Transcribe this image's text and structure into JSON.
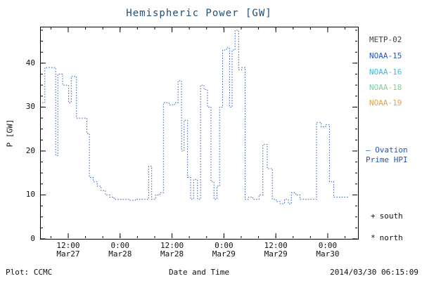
{
  "title": {
    "text": "Hemispheric Power [GW]",
    "color": "#1f4e79"
  },
  "y_axis_label": "P [GW]",
  "x_axis_label": "Date and Time",
  "footer": {
    "plot_credit": "Plot: CCMC",
    "timestamp": "2014/03/30 06:15:09"
  },
  "legend": {
    "satellites": [
      {
        "label": "METP-02",
        "color": "#3f3f3f"
      },
      {
        "label": "NOAA-15",
        "color": "#2457b8"
      },
      {
        "label": "NOAA-16",
        "color": "#3fbcd4"
      },
      {
        "label": "NOAA-18",
        "color": "#7ecf9a"
      },
      {
        "label": "NOAA-19",
        "color": "#e2a14f"
      }
    ],
    "ovation_note": {
      "line1": "— Ovation",
      "line2": "Prime HPI",
      "color": "#2457b8"
    },
    "hemisphere_markers": [
      {
        "symbol": "+",
        "label": "south"
      },
      {
        "symbol": "*",
        "label": "north"
      }
    ]
  },
  "chart_data": {
    "type": "line",
    "step": true,
    "line_style": "dotted",
    "title": "Hemispheric Power [GW]",
    "xlabel": "Date and Time",
    "ylabel": "P [GW]",
    "x_unit": "hours since 2014-03-27 00:00 UT",
    "xlim": [
      5.5,
      79
    ],
    "ylim": [
      0,
      48.3
    ],
    "y_ticks": [
      0,
      10,
      20,
      30,
      40
    ],
    "y_minor_step": 2.5,
    "x_minor_step_hours": 4,
    "x_ticks": [
      {
        "hours": 12,
        "time": "12:00",
        "date": "Mar27"
      },
      {
        "hours": 24,
        "time": "0:00",
        "date": "Mar28"
      },
      {
        "hours": 36,
        "time": "12:00",
        "date": "Mar28"
      },
      {
        "hours": 48,
        "time": "0:00",
        "date": "Mar29"
      },
      {
        "hours": 60,
        "time": "12:00",
        "date": "Mar29"
      },
      {
        "hours": 72,
        "time": "0:00",
        "date": "Mar30"
      }
    ],
    "line_color": "#2457b8",
    "legend_position": "right",
    "grid": false,
    "series": [
      {
        "name": "Ovation Prime HPI",
        "points": [
          [
            6.0,
            31
          ],
          [
            6.6,
            39
          ],
          [
            9.1,
            19
          ],
          [
            9.6,
            37.5
          ],
          [
            10.7,
            35
          ],
          [
            12.1,
            31
          ],
          [
            12.7,
            37
          ],
          [
            13.9,
            27.5
          ],
          [
            15.3,
            27.5
          ],
          [
            16.3,
            24
          ],
          [
            16.9,
            14
          ],
          [
            17.8,
            13
          ],
          [
            18.7,
            12
          ],
          [
            19.6,
            11
          ],
          [
            20.6,
            10
          ],
          [
            21.6,
            9.5
          ],
          [
            22.6,
            9
          ],
          [
            26.0,
            8.8
          ],
          [
            27.5,
            9
          ],
          [
            30.2,
            9
          ],
          [
            30.6,
            16.5
          ],
          [
            31.3,
            9
          ],
          [
            32.2,
            10
          ],
          [
            33.2,
            10.5
          ],
          [
            34.0,
            31
          ],
          [
            35.3,
            30.5
          ],
          [
            36.6,
            31
          ],
          [
            37.4,
            36
          ],
          [
            38.2,
            20
          ],
          [
            38.8,
            27
          ],
          [
            39.6,
            14
          ],
          [
            40.3,
            9
          ],
          [
            41.0,
            13.5
          ],
          [
            41.9,
            9
          ],
          [
            42.6,
            35
          ],
          [
            43.4,
            34
          ],
          [
            44.2,
            30
          ],
          [
            45.0,
            13
          ],
          [
            45.7,
            9
          ],
          [
            46.4,
            12
          ],
          [
            47.0,
            30
          ],
          [
            47.7,
            43
          ],
          [
            48.6,
            43.5
          ],
          [
            49.3,
            30
          ],
          [
            49.9,
            43
          ],
          [
            50.6,
            47.5
          ],
          [
            51.4,
            38.5
          ],
          [
            52.1,
            39
          ],
          [
            52.9,
            9
          ],
          [
            53.7,
            9.5
          ],
          [
            54.7,
            9
          ],
          [
            56.1,
            10
          ],
          [
            57.0,
            21.5
          ],
          [
            58.0,
            16
          ],
          [
            59.2,
            9
          ],
          [
            60.1,
            8.5
          ],
          [
            61.0,
            8
          ],
          [
            62.0,
            9
          ],
          [
            62.9,
            8
          ],
          [
            63.6,
            10.5
          ],
          [
            64.6,
            10
          ],
          [
            65.6,
            9
          ],
          [
            67.2,
            9
          ],
          [
            69.4,
            26.5
          ],
          [
            70.5,
            25.5
          ],
          [
            71.5,
            26
          ],
          [
            72.4,
            13
          ],
          [
            73.4,
            9.5
          ],
          [
            77.0,
            9.5
          ]
        ]
      }
    ]
  }
}
